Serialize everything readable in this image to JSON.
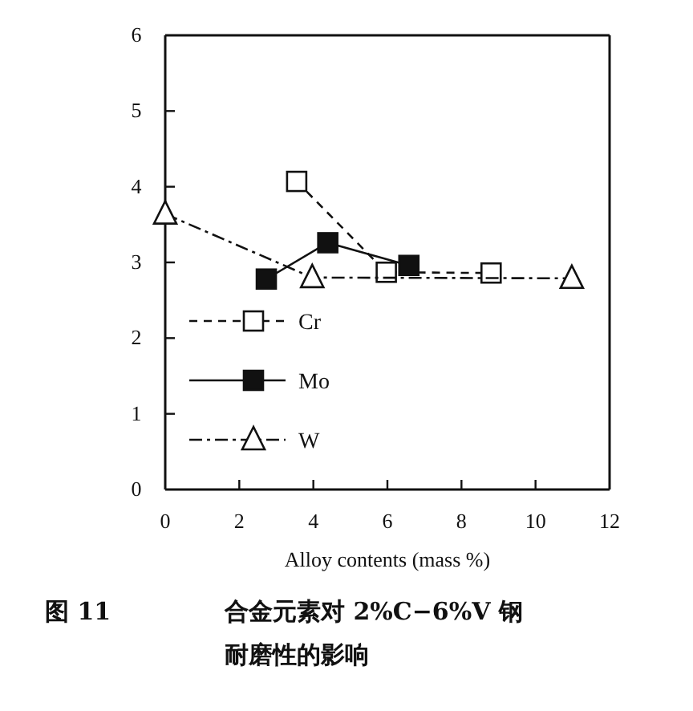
{
  "chart_data": {
    "type": "line",
    "title": "合金元素对 2%C−6%V 钢耐磨性的影响",
    "xlabel": "Alloy contents (mass %)",
    "annotations": [
      "图 11"
    ],
    "xlim": [
      0,
      12
    ],
    "xticks": [
      0,
      2,
      4,
      6,
      8,
      10,
      12
    ],
    "ylim": [
      0,
      6
    ],
    "yticks": [
      0,
      1,
      2,
      3,
      4,
      5,
      6
    ],
    "grid": false,
    "legend": "bottom left",
    "series": [
      {
        "name": "Cr",
        "color": "#ffffff",
        "marker": "square",
        "line_style": "dashed",
        "x": [
          3.55,
          5.97,
          8.8
        ],
        "values": [
          4.07,
          2.87,
          2.86
        ]
      },
      {
        "name": "Mo",
        "color": "#111111",
        "marker": "square",
        "line_style": "solid",
        "x": [
          2.73,
          4.39,
          6.58
        ],
        "values": [
          2.78,
          3.26,
          2.96
        ]
      },
      {
        "name": "W",
        "color": "#ffffff",
        "marker": "triangle",
        "line_style": "dashdot",
        "x": [
          0,
          3.97,
          10.98
        ],
        "values": [
          3.64,
          2.8,
          2.79
        ]
      }
    ]
  }
}
